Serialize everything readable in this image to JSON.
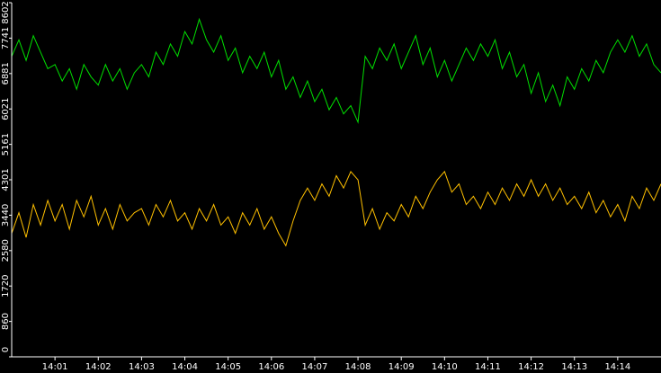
{
  "chart_data": {
    "type": "line",
    "x": [
      0,
      10,
      20,
      30,
      40,
      50,
      60,
      70,
      80,
      90,
      100,
      110,
      120,
      130,
      140,
      150,
      160,
      170,
      180,
      190,
      200,
      210,
      220,
      230,
      240,
      250,
      260,
      270,
      280,
      290,
      300,
      310,
      320,
      330,
      340,
      350,
      360,
      370,
      380,
      390,
      400,
      410,
      420,
      430,
      440,
      450,
      460,
      470,
      480,
      490,
      500,
      510,
      520,
      530,
      540,
      550,
      560,
      570,
      580,
      590,
      600,
      610,
      620,
      630,
      640,
      650,
      660,
      670,
      680,
      690,
      700,
      710,
      720,
      730,
      740,
      750,
      760,
      770,
      780,
      790,
      800,
      810,
      820,
      830,
      840,
      850,
      860,
      870,
      880,
      890,
      900
    ],
    "series": [
      {
        "color": "#00e000",
        "values": [
          7300,
          7700,
          7200,
          7800,
          7400,
          7000,
          7100,
          6700,
          7000,
          6500,
          7100,
          6800,
          6600,
          7100,
          6700,
          7000,
          6500,
          6900,
          7100,
          6800,
          7400,
          7100,
          7600,
          7300,
          7900,
          7600,
          8200,
          7700,
          7400,
          7800,
          7200,
          7500,
          6900,
          7300,
          7000,
          7400,
          6800,
          7200,
          6500,
          6800,
          6300,
          6700,
          6200,
          6500,
          6000,
          6300,
          5900,
          6100,
          5700,
          7300,
          7000,
          7500,
          7200,
          7600,
          7000,
          7400,
          7800,
          7100,
          7500,
          6800,
          7200,
          6700,
          7100,
          7500,
          7200,
          7600,
          7300,
          7700,
          7000,
          7400,
          6800,
          7100,
          6400,
          6900,
          6200,
          6600,
          6100,
          6800,
          6500,
          7000,
          6700,
          7200,
          6900,
          7400,
          7700,
          7400,
          7800,
          7300,
          7600,
          7100,
          6900
        ]
      },
      {
        "color": "#ffc000",
        "values": [
          3000,
          3500,
          2900,
          3700,
          3200,
          3800,
          3300,
          3700,
          3100,
          3800,
          3400,
          3900,
          3200,
          3600,
          3100,
          3700,
          3300,
          3500,
          3600,
          3200,
          3700,
          3400,
          3800,
          3300,
          3500,
          3100,
          3600,
          3300,
          3700,
          3200,
          3400,
          3000,
          3500,
          3200,
          3600,
          3100,
          3400,
          3000,
          2700,
          3300,
          3800,
          4100,
          3800,
          4200,
          3900,
          4400,
          4100,
          4500,
          4300,
          3200,
          3600,
          3100,
          3500,
          3300,
          3700,
          3400,
          3900,
          3600,
          4000,
          4300,
          4500,
          4000,
          4200,
          3700,
          3900,
          3600,
          4000,
          3700,
          4100,
          3800,
          4200,
          3900,
          4300,
          3900,
          4200,
          3800,
          4100,
          3700,
          3900,
          3600,
          4000,
          3500,
          3800,
          3400,
          3700,
          3300,
          3900,
          3600,
          4100,
          3800,
          4200
        ]
      }
    ],
    "xlim": [
      0,
      900
    ],
    "xticks": [
      {
        "value": 60,
        "label": "14:01"
      },
      {
        "value": 120,
        "label": "14:02"
      },
      {
        "value": 180,
        "label": "14:03"
      },
      {
        "value": 240,
        "label": "14:04"
      },
      {
        "value": 300,
        "label": "14:05"
      },
      {
        "value": 360,
        "label": "14:06"
      },
      {
        "value": 420,
        "label": "14:07"
      },
      {
        "value": 480,
        "label": "14:08"
      },
      {
        "value": 540,
        "label": "14:09"
      },
      {
        "value": 600,
        "label": "14:10"
      },
      {
        "value": 660,
        "label": "14:11"
      },
      {
        "value": 720,
        "label": "14:12"
      },
      {
        "value": 780,
        "label": "14:13"
      },
      {
        "value": 840,
        "label": "14:14"
      }
    ],
    "ylim": [
      0,
      8602
    ],
    "yticks": [
      0,
      860,
      1720,
      2580,
      3440,
      4301,
      5161,
      6021,
      6881,
      7741,
      8602
    ],
    "grid": false
  }
}
